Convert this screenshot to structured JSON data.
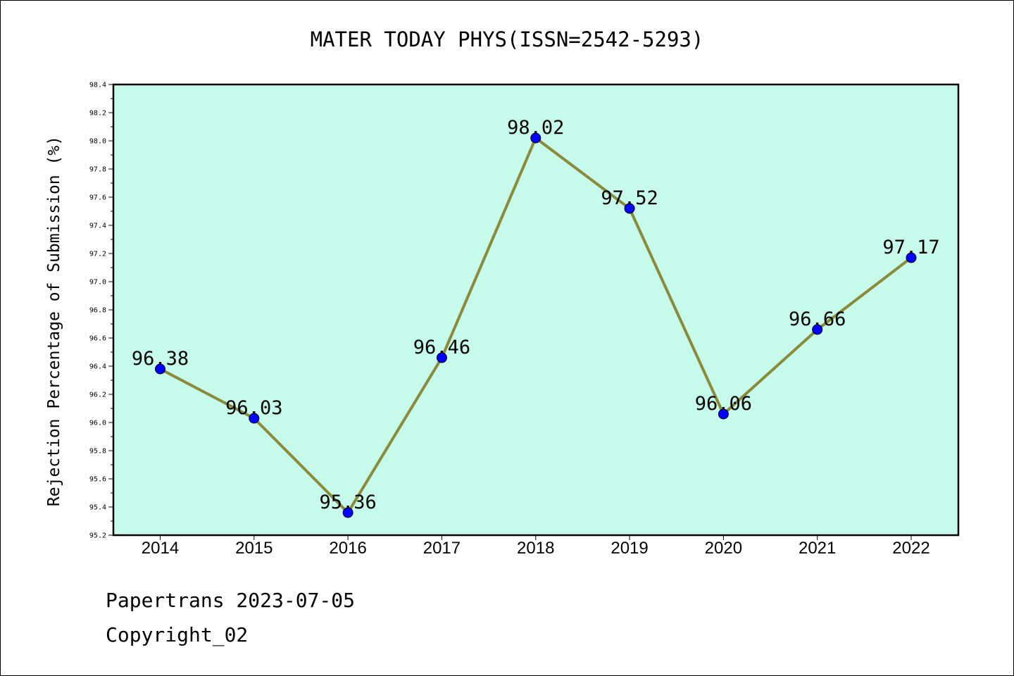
{
  "chart_data": {
    "type": "line",
    "title": "MATER TODAY PHYS(ISSN=2542-5293)",
    "xlabel": "",
    "ylabel": "Rejection Percentage of Submission (%)",
    "categories": [
      "2014",
      "2015",
      "2016",
      "2017",
      "2018",
      "2019",
      "2020",
      "2021",
      "2022"
    ],
    "series": [
      {
        "values": [
          96.38,
          96.03,
          95.36,
          96.46,
          98.02,
          97.52,
          96.06,
          96.66,
          97.17
        ]
      }
    ],
    "data_labels": [
      "96.38",
      "96.03",
      "95.36",
      "96.46",
      "98.02",
      "97.52",
      "96.06",
      "96.66",
      "97.17"
    ],
    "ylim": [
      95.2,
      98.4
    ],
    "yticks": [
      "95.2",
      "95.4",
      "95.6",
      "95.8",
      "96.0",
      "96.2",
      "96.4",
      "96.6",
      "96.8",
      "97.0",
      "97.2",
      "97.4",
      "97.6",
      "97.8",
      "98.0",
      "98.2",
      "98.4"
    ],
    "grid": false,
    "legend": "none",
    "colors": {
      "plot_background": "#c6fbec",
      "line": "#8b8a3a",
      "marker": "#0000ff"
    }
  },
  "footer": {
    "line1": "Papertrans 2023-07-05",
    "line2": "Copyright_02"
  }
}
